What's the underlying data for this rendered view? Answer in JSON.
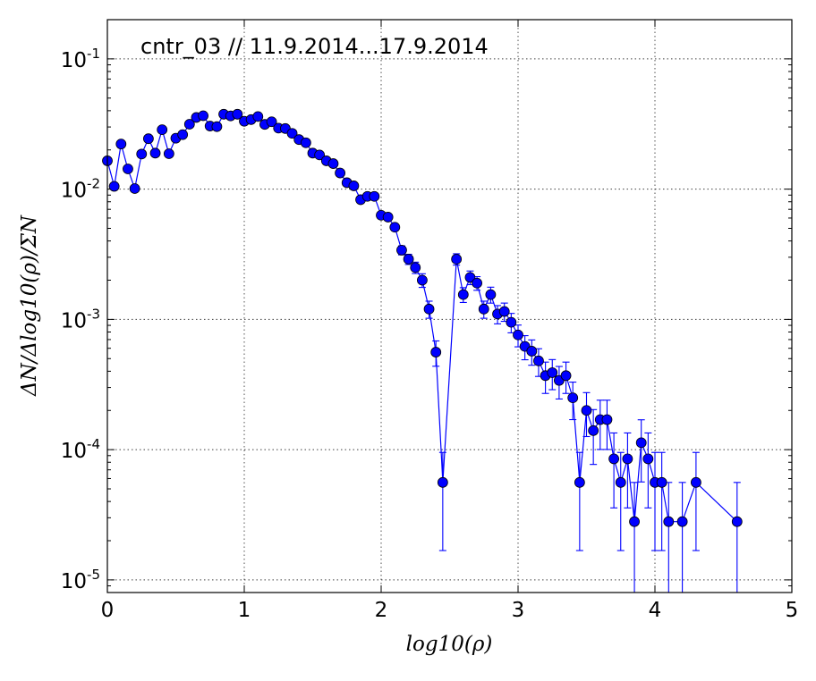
{
  "chart_data": {
    "type": "scatter",
    "title": "cntr_03 // 11.9.2014...17.9.2014",
    "xlabel": "log10(ρ)",
    "ylabel": "ΔN/Δlog10(ρ)/ΣN",
    "xlim": [
      0,
      5
    ],
    "ylim": [
      8e-06,
      0.2
    ],
    "yscale": "log",
    "grid": true,
    "x_ticks": [
      "0",
      "1",
      "2",
      "3",
      "4",
      "5"
    ],
    "y_ticks": [
      {
        "base": "10",
        "exp": "-1"
      },
      {
        "base": "10",
        "exp": "-2"
      },
      {
        "base": "10",
        "exp": "-3"
      },
      {
        "base": "10",
        "exp": "-4"
      },
      {
        "base": "10",
        "exp": "-5"
      }
    ],
    "colors": {
      "series": "#0000ff"
    },
    "series": [
      {
        "x": [
          0.0,
          0.05,
          0.1,
          0.15,
          0.2,
          0.25,
          0.3,
          0.35,
          0.4,
          0.45,
          0.5,
          0.55,
          0.6,
          0.65,
          0.7,
          0.75,
          0.8,
          0.85,
          0.9,
          0.95,
          1.0,
          1.05,
          1.1,
          1.15,
          1.2,
          1.25,
          1.3,
          1.35,
          1.4,
          1.45,
          1.5,
          1.55,
          1.6,
          1.65,
          1.7,
          1.75,
          1.8,
          1.85,
          1.9,
          1.95,
          2.0,
          2.05,
          2.1,
          2.15,
          2.2,
          2.25,
          2.3,
          2.35,
          2.4,
          2.45,
          2.55,
          2.6,
          2.65,
          2.7,
          2.75,
          2.8,
          2.85,
          2.9,
          2.95,
          3.0,
          3.05,
          3.1,
          3.15,
          3.2,
          3.25,
          3.3,
          3.35,
          3.4,
          3.45,
          3.5,
          3.55,
          3.6,
          3.65,
          3.7,
          3.75,
          3.8,
          3.85,
          3.9,
          3.95,
          4.0,
          4.05,
          4.1,
          4.2,
          4.3,
          4.6
        ],
        "y": [
          0.0165,
          0.0105,
          0.0222,
          0.0143,
          0.0101,
          0.0186,
          0.0244,
          0.0189,
          0.0286,
          0.0187,
          0.0246,
          0.0262,
          0.0315,
          0.0355,
          0.0366,
          0.0305,
          0.0302,
          0.0376,
          0.0365,
          0.0376,
          0.0332,
          0.0342,
          0.0361,
          0.0314,
          0.0329,
          0.0294,
          0.0292,
          0.0268,
          0.024,
          0.0227,
          0.0189,
          0.0183,
          0.0165,
          0.0157,
          0.0133,
          0.0112,
          0.0106,
          0.0083,
          0.0088,
          0.0088,
          0.0063,
          0.0061,
          0.0051,
          0.0034,
          0.0029,
          0.0025,
          0.002,
          0.0012,
          0.00056,
          5.6e-05,
          0.0029,
          0.00155,
          0.0021,
          0.0019,
          0.0012,
          0.00155,
          0.0011,
          0.00115,
          0.00095,
          0.00076,
          0.00062,
          0.00057,
          0.00048,
          0.00037,
          0.00039,
          0.00034,
          0.00037,
          0.00025,
          5.6e-05,
          0.0002,
          0.00014,
          0.00017,
          0.00017,
          8.5e-05,
          5.6e-05,
          8.5e-05,
          2.8e-05,
          0.000113,
          8.5e-05,
          5.6e-05,
          5.6e-05,
          2.8e-05,
          2.8e-05,
          5.6e-05,
          2.8e-05
        ],
        "yerr_rel": [
          0.03,
          0.04,
          0.03,
          0.04,
          0.04,
          0.03,
          0.03,
          0.03,
          0.03,
          0.03,
          0.03,
          0.03,
          0.03,
          0.03,
          0.03,
          0.03,
          0.03,
          0.03,
          0.03,
          0.03,
          0.03,
          0.03,
          0.03,
          0.03,
          0.03,
          0.03,
          0.03,
          0.03,
          0.03,
          0.03,
          0.03,
          0.03,
          0.03,
          0.04,
          0.04,
          0.04,
          0.04,
          0.05,
          0.05,
          0.05,
          0.06,
          0.06,
          0.06,
          0.08,
          0.09,
          0.1,
          0.12,
          0.15,
          0.22,
          0.7,
          0.1,
          0.13,
          0.12,
          0.12,
          0.15,
          0.14,
          0.16,
          0.16,
          0.17,
          0.19,
          0.21,
          0.22,
          0.24,
          0.27,
          0.26,
          0.28,
          0.27,
          0.32,
          0.7,
          0.37,
          0.45,
          0.41,
          0.41,
          0.58,
          0.7,
          0.58,
          1.0,
          0.5,
          0.58,
          0.7,
          0.7,
          1.0,
          1.0,
          0.7,
          1.0
        ]
      }
    ]
  }
}
